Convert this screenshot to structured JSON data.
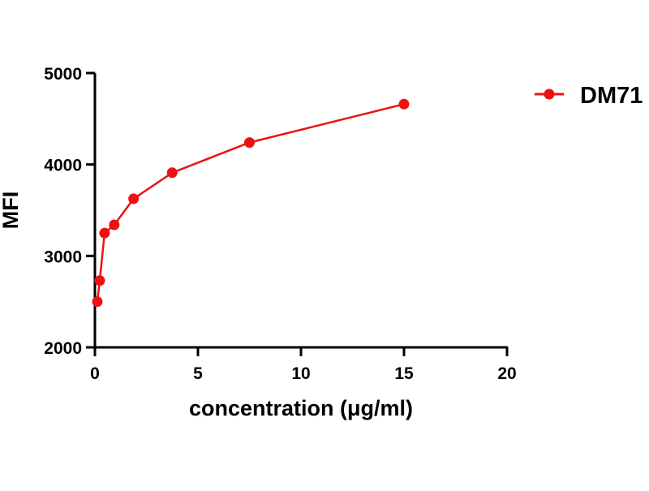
{
  "chart_data": {
    "type": "line",
    "title": "",
    "xlabel": "concentration (μg/ml)",
    "ylabel": "MFI",
    "xlim": [
      0,
      20
    ],
    "ylim": [
      2000,
      5000
    ],
    "xticks": [
      0,
      5,
      10,
      15,
      20
    ],
    "yticks": [
      2000,
      3000,
      4000,
      5000
    ],
    "grid": false,
    "legend_position": "top-right",
    "series": [
      {
        "name": "DM71",
        "color": "#ee1111",
        "x": [
          0.117,
          0.234,
          0.469,
          0.938,
          1.875,
          3.75,
          7.5,
          15
        ],
        "y": [
          2500,
          2730,
          3250,
          3340,
          3625,
          3910,
          4240,
          4660
        ]
      }
    ]
  }
}
